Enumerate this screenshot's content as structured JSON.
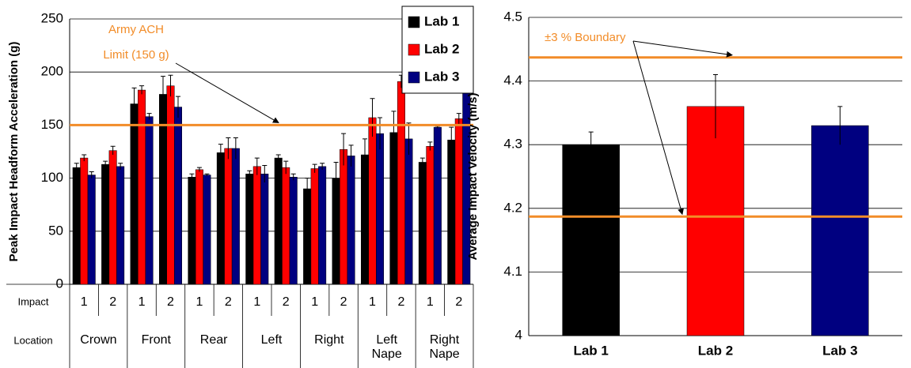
{
  "chart_data": [
    {
      "type": "bar",
      "y_label": "Peak Impact Headform Acceleration (g)",
      "impact_label": "Impact",
      "location_label": "Location",
      "categories": [
        "1",
        "2",
        "1",
        "2",
        "1",
        "2",
        "1",
        "2",
        "1",
        "2",
        "1",
        "2",
        "1",
        "2"
      ],
      "locations": [
        "Crown",
        "Front",
        "Rear",
        "Left",
        "Right",
        "Left Nape",
        "Right Nape"
      ],
      "series": [
        {
          "name": "Lab 1",
          "color": "#000000",
          "values": [
            110,
            113,
            170,
            179,
            101,
            124,
            104,
            119,
            90,
            100,
            122,
            143,
            115,
            136
          ],
          "errors": [
            4,
            3,
            15,
            17,
            3,
            8,
            3,
            3,
            10,
            15,
            15,
            20,
            4,
            12
          ]
        },
        {
          "name": "Lab 2",
          "color": "#ff0000",
          "values": [
            119,
            126,
            183,
            187,
            108,
            128,
            111,
            110,
            109,
            127,
            157,
            191,
            130,
            156
          ],
          "errors": [
            3,
            4,
            4,
            10,
            2,
            10,
            8,
            6,
            4,
            15,
            18,
            6,
            4,
            5
          ]
        },
        {
          "name": "Lab 3",
          "color": "#000080",
          "values": [
            103,
            111,
            158,
            167,
            103,
            128,
            104,
            101,
            111,
            121,
            142,
            137,
            148,
            185
          ],
          "errors": [
            3,
            3,
            3,
            10,
            1,
            10,
            8,
            3,
            3,
            10,
            15,
            15,
            1,
            0
          ]
        }
      ],
      "ylim": [
        0,
        250
      ],
      "yticks": [
        0,
        50,
        100,
        150,
        200,
        250
      ],
      "grid": true,
      "legend": "top-right",
      "reference_lines": [
        150
      ],
      "reference_color": "#f28c28",
      "annotation": [
        "Army ACH",
        "Limit (150 g)"
      ]
    },
    {
      "type": "bar",
      "y_label": "Average Impact Velocity (m/s)",
      "categories": [
        "Lab 1",
        "Lab 2",
        "Lab 3"
      ],
      "values": [
        4.3,
        4.36,
        4.33
      ],
      "errors": [
        0.02,
        0.05,
        0.03
      ],
      "colors": [
        "#000000",
        "#ff0000",
        "#000080"
      ],
      "ylim": [
        4,
        4.5
      ],
      "yticks": [
        4,
        4.1,
        4.2,
        4.3,
        4.4,
        4.5
      ],
      "grid": true,
      "reference_lines": [
        4.187,
        4.437
      ],
      "reference_color": "#f28c28",
      "annotation": [
        "±3 % Boundary"
      ]
    }
  ]
}
